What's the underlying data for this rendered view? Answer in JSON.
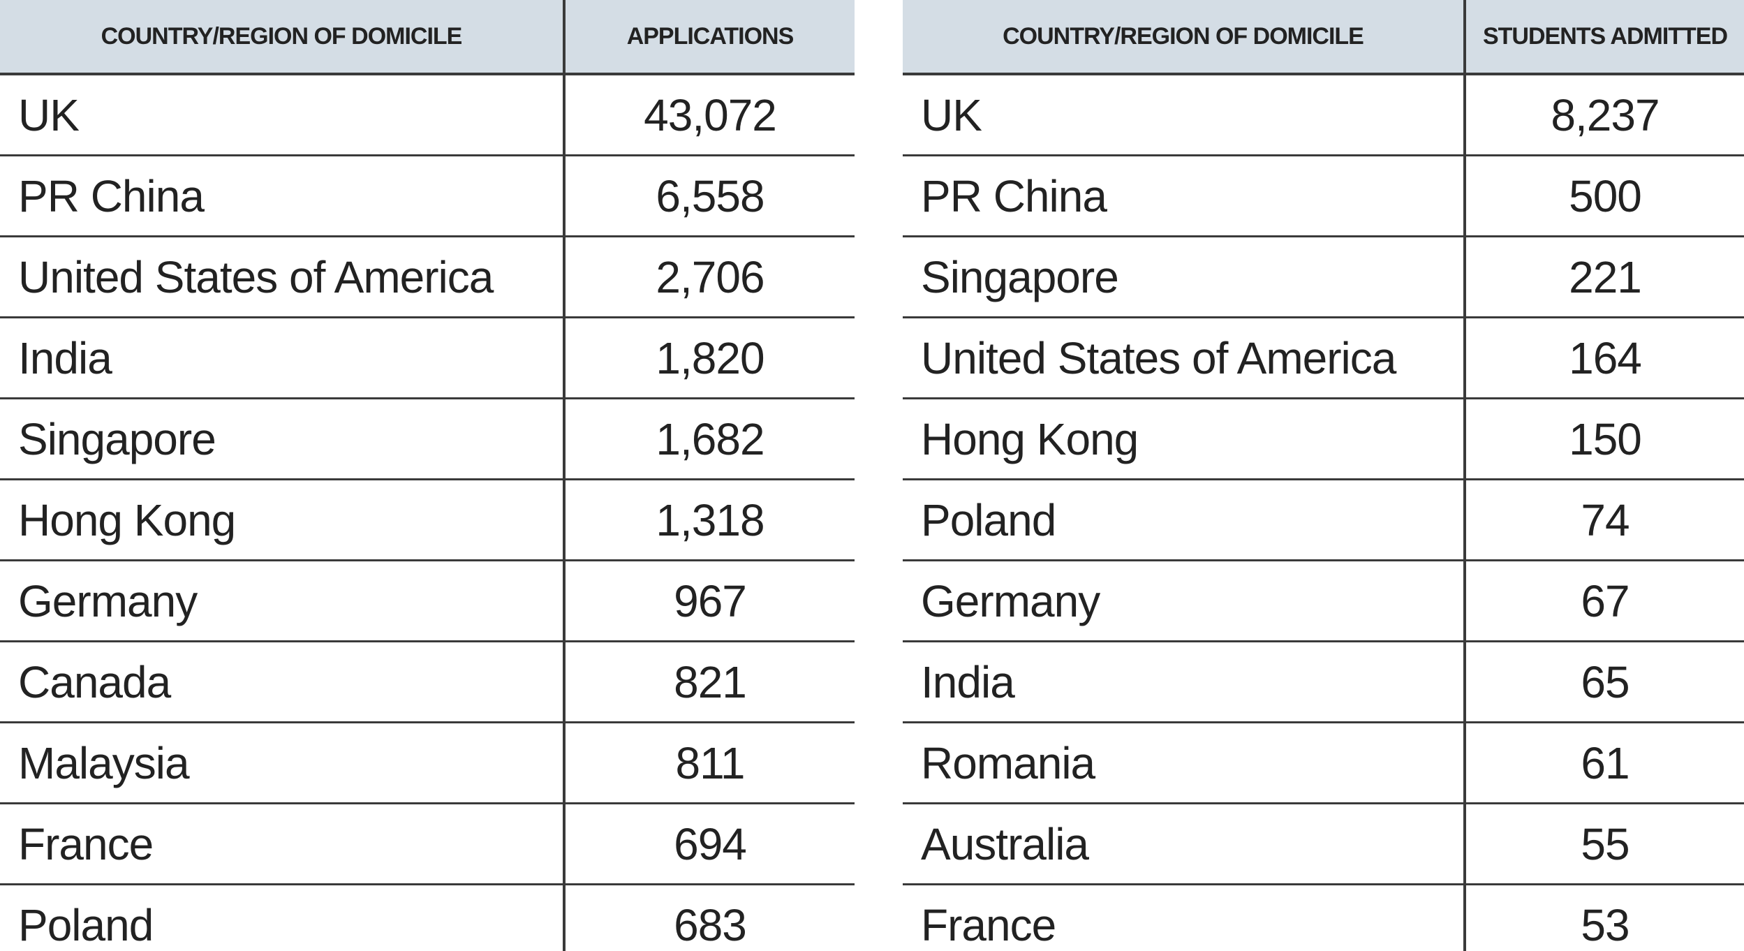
{
  "applications_table": {
    "headers": {
      "country": "COUNTRY/REGION OF DOMICILE",
      "value": "APPLICATIONS"
    },
    "rows": [
      {
        "country": "UK",
        "value": "43,072"
      },
      {
        "country": "PR China",
        "value": "6,558"
      },
      {
        "country": "United States of America",
        "value": "2,706"
      },
      {
        "country": "India",
        "value": "1,820"
      },
      {
        "country": "Singapore",
        "value": "1,682"
      },
      {
        "country": "Hong Kong",
        "value": "1,318"
      },
      {
        "country": "Germany",
        "value": "967"
      },
      {
        "country": "Canada",
        "value": "821"
      },
      {
        "country": "Malaysia",
        "value": "811"
      },
      {
        "country": "France",
        "value": "694"
      },
      {
        "country": "Poland",
        "value": "683"
      }
    ]
  },
  "admitted_table": {
    "headers": {
      "country": "COUNTRY/REGION OF DOMICILE",
      "value": "STUDENTS ADMITTED"
    },
    "rows": [
      {
        "country": "UK",
        "value": "8,237"
      },
      {
        "country": "PR China",
        "value": "500"
      },
      {
        "country": "Singapore",
        "value": "221"
      },
      {
        "country": "United States of America",
        "value": "164"
      },
      {
        "country": "Hong Kong",
        "value": "150"
      },
      {
        "country": "Poland",
        "value": "74"
      },
      {
        "country": "Germany",
        "value": "67"
      },
      {
        "country": "India",
        "value": "65"
      },
      {
        "country": "Romania",
        "value": "61"
      },
      {
        "country": "Australia",
        "value": "55"
      },
      {
        "country": "France",
        "value": "53"
      }
    ]
  },
  "colors": {
    "header_background": "#d4dde5",
    "rule": "#3a3a3a",
    "text": "#222222"
  }
}
